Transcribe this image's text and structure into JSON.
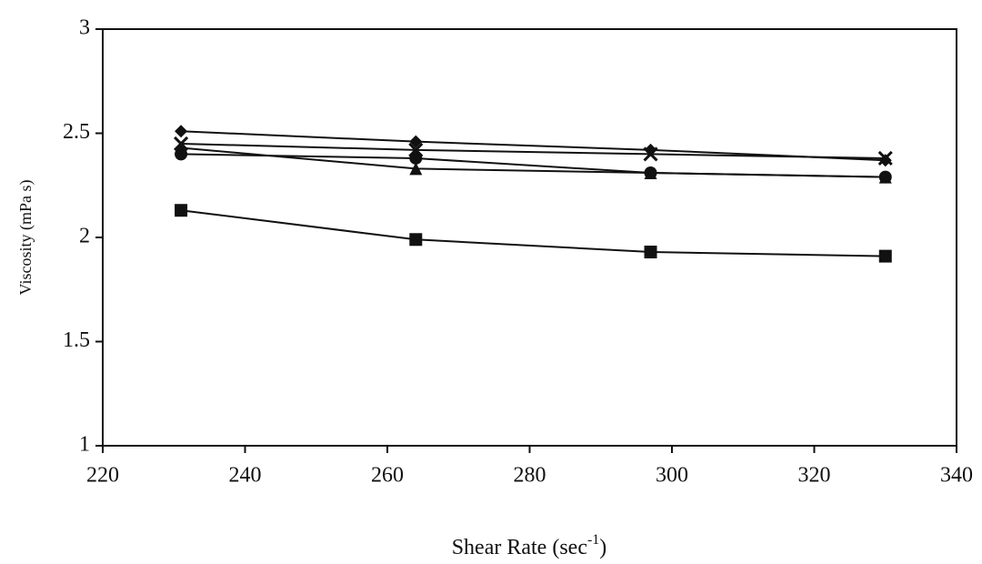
{
  "chart_data": {
    "type": "line",
    "x_label_parts": [
      "Shear Rate (sec",
      "-1",
      ")"
    ],
    "y_label": "Viscosity (mPa s)",
    "x": [
      231,
      264,
      297,
      330
    ],
    "series": [
      {
        "marker": "diamond",
        "color": "#111111",
        "values": [
          2.51,
          2.46,
          2.42,
          2.37
        ]
      },
      {
        "marker": "cross",
        "color": "#111111",
        "values": [
          2.45,
          2.42,
          2.4,
          2.38
        ]
      },
      {
        "marker": "triangle",
        "color": "#111111",
        "values": [
          2.43,
          2.33,
          2.31,
          2.29
        ]
      },
      {
        "marker": "circle",
        "color": "#111111",
        "values": [
          2.4,
          2.38,
          2.31,
          2.29
        ]
      },
      {
        "marker": "square",
        "color": "#111111",
        "values": [
          2.13,
          1.99,
          1.93,
          1.91
        ]
      }
    ],
    "xlim": [
      220,
      340
    ],
    "xticks": [
      220,
      240,
      260,
      280,
      300,
      320,
      340
    ],
    "ylim": [
      1,
      3
    ],
    "yticks": [
      1,
      1.5,
      2,
      2.5,
      3
    ],
    "grid": false
  }
}
